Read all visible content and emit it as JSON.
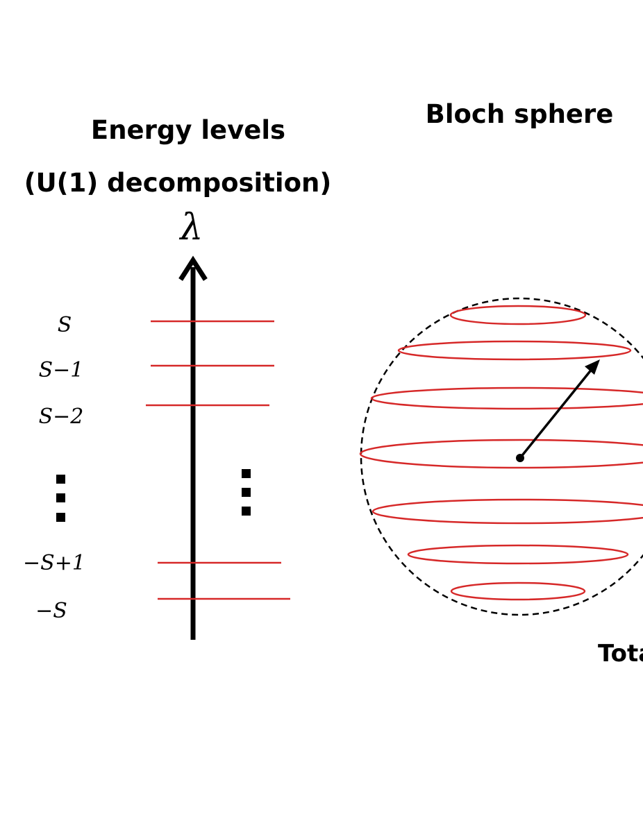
{
  "energy_panel": {
    "title_line1": "Energy levels",
    "title_line2": "(U(1) decomposition)",
    "axis_symbol": "λ",
    "levels": [
      {
        "label": "S"
      },
      {
        "label": "S−1"
      },
      {
        "label": "S−2"
      },
      {
        "label": "−S+1"
      },
      {
        "label": "−S"
      }
    ]
  },
  "bloch_panel": {
    "title": "Bloch sphere",
    "caption_partial": "Tota"
  },
  "colors": {
    "level_lines": "#d62828",
    "rings": "#d62828",
    "axis": "#000000",
    "sphere_outline": "#000000"
  }
}
